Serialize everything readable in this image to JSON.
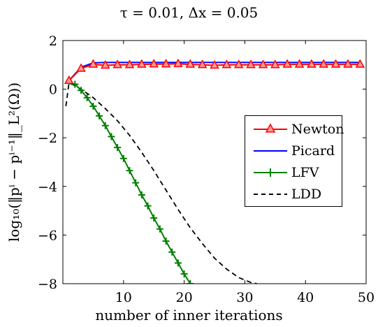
{
  "chart_data": {
    "type": "line",
    "title": "τ = 0.01, Δx = 0.05",
    "xlabel": "number of inner iterations",
    "ylabel": "log₁₀(‖pⁱ − pⁱ⁻¹‖_L²(Ω))",
    "xlim": [
      0,
      50
    ],
    "ylim": [
      -8,
      2
    ],
    "xticks": [
      10,
      20,
      30,
      40,
      50
    ],
    "yticks": [
      2,
      0,
      -2,
      -4,
      -6,
      -8
    ],
    "grid": false,
    "legend_position": "right",
    "series": [
      {
        "name": "Newton",
        "color": "#ff0000",
        "marker": "triangle",
        "line": "solid",
        "x": [
          1,
          3,
          5,
          7,
          9,
          11,
          13,
          15,
          17,
          19,
          21,
          23,
          25,
          27,
          29,
          31,
          33,
          35,
          37,
          39,
          41,
          43,
          45,
          47,
          49
        ],
        "y": [
          0.35,
          0.85,
          1.02,
          0.98,
          1.0,
          1.0,
          1.02,
          1.03,
          1.03,
          1.04,
          1.02,
          1.0,
          0.98,
          1.0,
          1.0,
          1.0,
          1.0,
          1.0,
          1.02,
          1.02,
          1.02,
          1.02,
          1.02,
          1.02,
          1.02
        ]
      },
      {
        "name": "Picard",
        "color": "#0000ff",
        "marker": "none",
        "line": "solid",
        "x": [
          1,
          3,
          5,
          7,
          10,
          15,
          20,
          25,
          30,
          35,
          40,
          45,
          49
        ],
        "y": [
          0.35,
          0.9,
          1.08,
          1.1,
          1.1,
          1.1,
          1.1,
          1.1,
          1.1,
          1.1,
          1.1,
          1.1,
          1.1
        ]
      },
      {
        "name": "LFV",
        "color": "#008000",
        "marker": "plus",
        "line": "solid",
        "x": [
          1,
          2,
          3,
          4,
          5,
          6,
          7,
          8,
          9,
          10,
          11,
          12,
          13,
          14,
          15,
          16,
          17,
          18,
          19,
          20,
          21
        ],
        "y": [
          0.3,
          0.2,
          -0.05,
          -0.35,
          -0.7,
          -1.1,
          -1.5,
          -1.95,
          -2.4,
          -2.85,
          -3.35,
          -3.85,
          -4.35,
          -4.8,
          -5.3,
          -5.75,
          -6.25,
          -6.7,
          -7.15,
          -7.6,
          -8.0
        ]
      },
      {
        "name": "LDD",
        "color": "#000000",
        "marker": "none",
        "line": "dashed",
        "x": [
          0.5,
          1,
          2,
          3,
          5,
          7,
          9,
          11,
          13,
          15,
          17,
          19,
          21,
          23,
          25,
          27,
          29,
          31,
          32
        ],
        "y": [
          -0.7,
          0.25,
          0.15,
          0.0,
          -0.35,
          -0.8,
          -1.3,
          -1.9,
          -2.6,
          -3.35,
          -4.15,
          -4.95,
          -5.7,
          -6.35,
          -6.95,
          -7.4,
          -7.75,
          -7.95,
          -8.0
        ]
      }
    ]
  }
}
